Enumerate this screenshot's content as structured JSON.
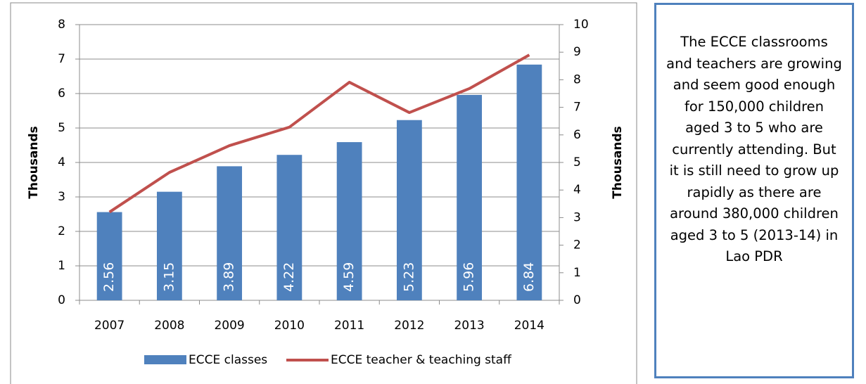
{
  "chart_data": {
    "type": "bar-line",
    "categories": [
      "2007",
      "2008",
      "2009",
      "2010",
      "2011",
      "2012",
      "2013",
      "2014"
    ],
    "series": [
      {
        "name": "ECCE classes",
        "type": "bar",
        "color": "#4f81bd",
        "values": [
          2.56,
          3.15,
          3.89,
          4.22,
          4.59,
          5.23,
          5.96,
          6.84
        ]
      },
      {
        "name": "ECCE teacher & teaching staff",
        "type": "line",
        "axis": "y2",
        "color": "#c0504d",
        "values": [
          3.2,
          4.64,
          5.61,
          6.28,
          7.91,
          6.81,
          7.68,
          8.9
        ]
      }
    ],
    "y_label": "Thousands",
    "y2_label": "Thousands",
    "ylim": [
      0,
      8
    ],
    "yticks": [
      0,
      1,
      2,
      3,
      4,
      5,
      6,
      7,
      8
    ],
    "y2lim": [
      0,
      10
    ],
    "y2ticks": [
      0,
      1,
      2,
      3,
      4,
      5,
      6,
      7,
      8,
      9,
      10
    ],
    "grid": true,
    "legend": "bottom"
  },
  "annotation": "The ECCE classrooms and teachers are growing and seem good enough for 150,000 children aged 3 to 5 who are currently attending. But it is still need to grow up rapidly as there are around 380,000 children aged 3 to 5 (2013-14) in Lao PDR"
}
